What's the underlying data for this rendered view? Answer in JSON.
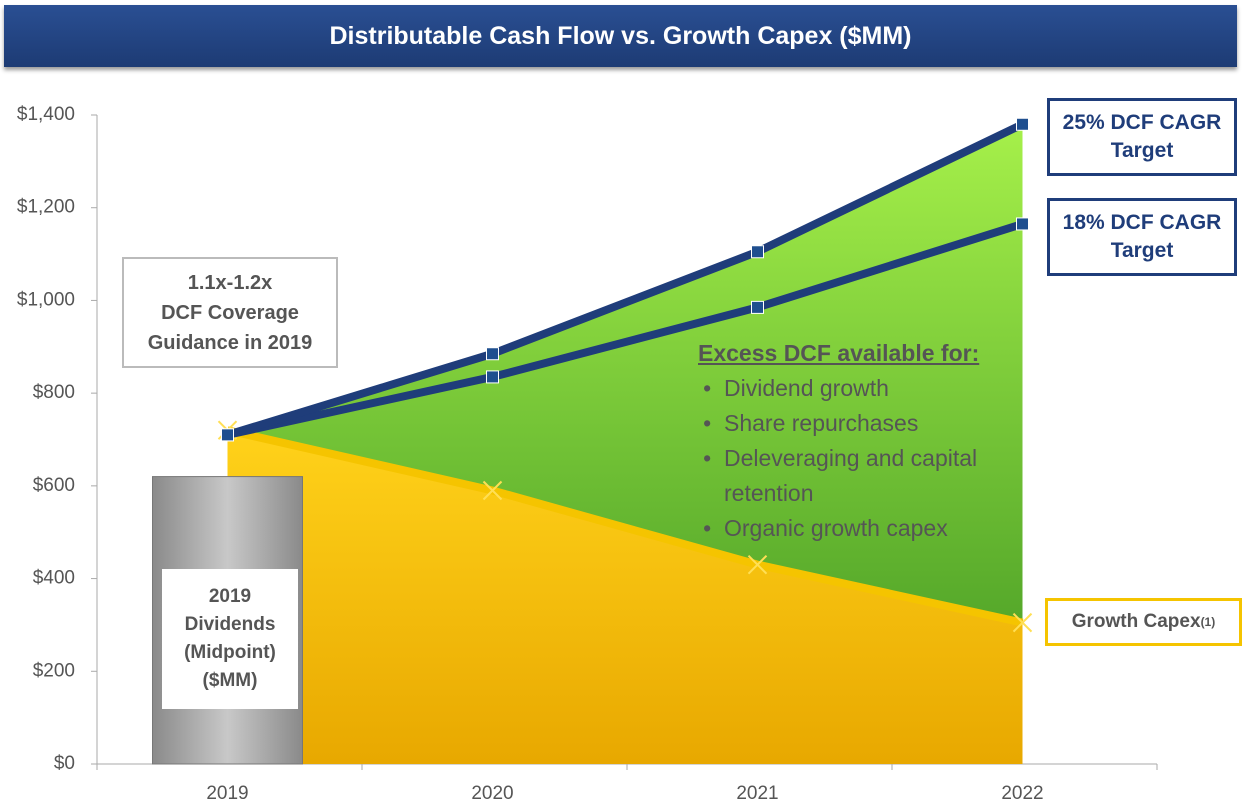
{
  "chart_data": {
    "type": "line",
    "title": "Distributable Cash Flow vs. Growth Capex ($MM)",
    "categories": [
      "2019",
      "2020",
      "2021",
      "2022"
    ],
    "series": [
      {
        "name": "25% DCF CAGR Target",
        "color": "#1f3d7a",
        "values": [
          710,
          885,
          1105,
          1380
        ]
      },
      {
        "name": "18% DCF CAGR Target",
        "color": "#1f3d7a",
        "values": [
          710,
          835,
          985,
          1165
        ]
      },
      {
        "name": "Growth Capex",
        "footnote": "(1)",
        "color": "#f5c400",
        "values": [
          720,
          590,
          430,
          305
        ]
      }
    ],
    "dividends_bar": {
      "value": 620,
      "color": "#a6a6a6",
      "label": [
        "2019",
        "Dividends",
        "(Midpoint)",
        "($MM)"
      ]
    },
    "excess_area_color": "#7ed321",
    "ylim": [
      0,
      1400
    ],
    "yticks": [
      {
        "value": 0,
        "label": "$0"
      },
      {
        "value": 200,
        "label": "$200"
      },
      {
        "value": 400,
        "label": "$400"
      },
      {
        "value": 600,
        "label": "$600"
      },
      {
        "value": 800,
        "label": "$800"
      },
      {
        "value": 1000,
        "label": "$1,000"
      },
      {
        "value": 1200,
        "label": "$1,200"
      },
      {
        "value": 1400,
        "label": "$1,400"
      }
    ],
    "coverage_note": [
      "1.1x-1.2x",
      "DCF Coverage",
      "Guidance in 2019"
    ],
    "excess_heading": "Excess DCF available for:",
    "excess_items": [
      "Dividend growth",
      "Share repurchases",
      "Deleveraging and capital retention",
      "Organic growth capex"
    ]
  }
}
